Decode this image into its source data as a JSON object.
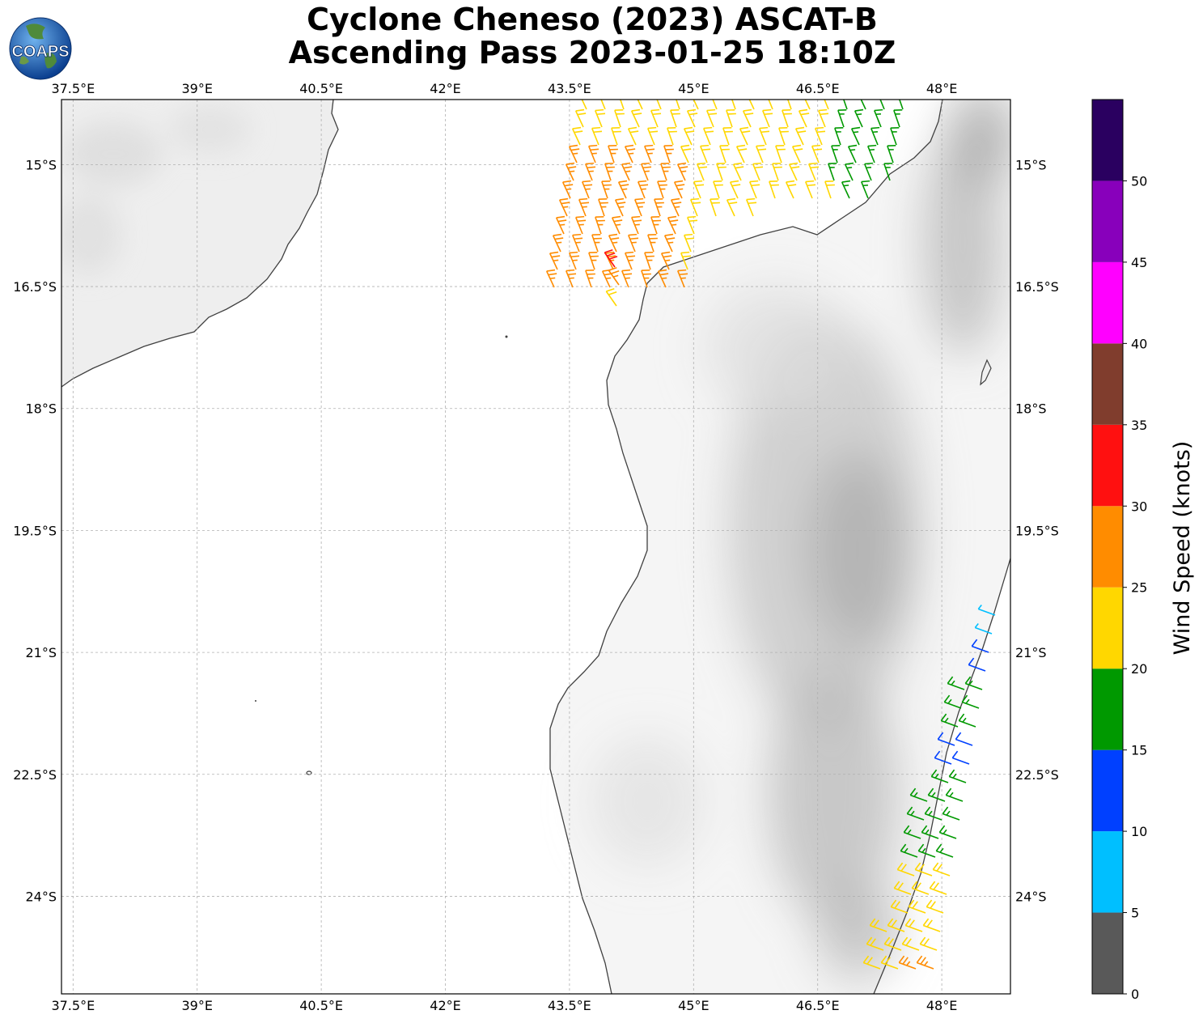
{
  "title": {
    "line1": "Cyclone Cheneso (2023) ASCAT-B",
    "line2": "Ascending Pass 2023-01-25 18:10Z"
  },
  "logo": {
    "text": "COAPS",
    "icon": "globe-icon"
  },
  "map": {
    "lon_range": [
      37.36,
      48.83
    ],
    "lat_range": [
      -25.2,
      -14.2
    ],
    "lon_ticks": [
      "37.5°E",
      "39°E",
      "40.5°E",
      "42°E",
      "43.5°E",
      "45°E",
      "46.5°E",
      "48°E"
    ],
    "lat_ticks": [
      "15°S",
      "16.5°S",
      "18°S",
      "19.5°S",
      "21°S",
      "22.5°S",
      "24°S"
    ],
    "gridlines": true,
    "background": "grayscale terrain"
  },
  "colorbar": {
    "label": "Wind Speed (knots)",
    "ticks": [
      "0",
      "5",
      "10",
      "15",
      "20",
      "25",
      "30",
      "35",
      "40",
      "45",
      "50"
    ],
    "bins": [
      {
        "min": 0,
        "max": 5,
        "color": "#595959"
      },
      {
        "min": 5,
        "max": 10,
        "color": "#00bfff"
      },
      {
        "min": 10,
        "max": 15,
        "color": "#0040ff"
      },
      {
        "min": 15,
        "max": 20,
        "color": "#009900"
      },
      {
        "min": 20,
        "max": 25,
        "color": "#ffd700"
      },
      {
        "min": 25,
        "max": 30,
        "color": "#ff8c00"
      },
      {
        "min": 30,
        "max": 35,
        "color": "#ff1010"
      },
      {
        "min": 35,
        "max": 40,
        "color": "#803d2d"
      },
      {
        "min": 40,
        "max": 45,
        "color": "#ff00ff"
      },
      {
        "min": 45,
        "max": 50,
        "color": "#8800bb"
      },
      {
        "min": 50,
        "max": 55,
        "color": "#2a0060"
      }
    ]
  },
  "wind_swaths": [
    {
      "name": "north swath",
      "lon_start": 43.6,
      "lon_end": 47.6,
      "lat_start": -14.2,
      "lat_end": -16.8
    },
    {
      "name": "southeast swath",
      "lon_start": 47.3,
      "lon_end": 48.83,
      "lat_start": -20.4,
      "lat_end": -25.1
    }
  ]
}
